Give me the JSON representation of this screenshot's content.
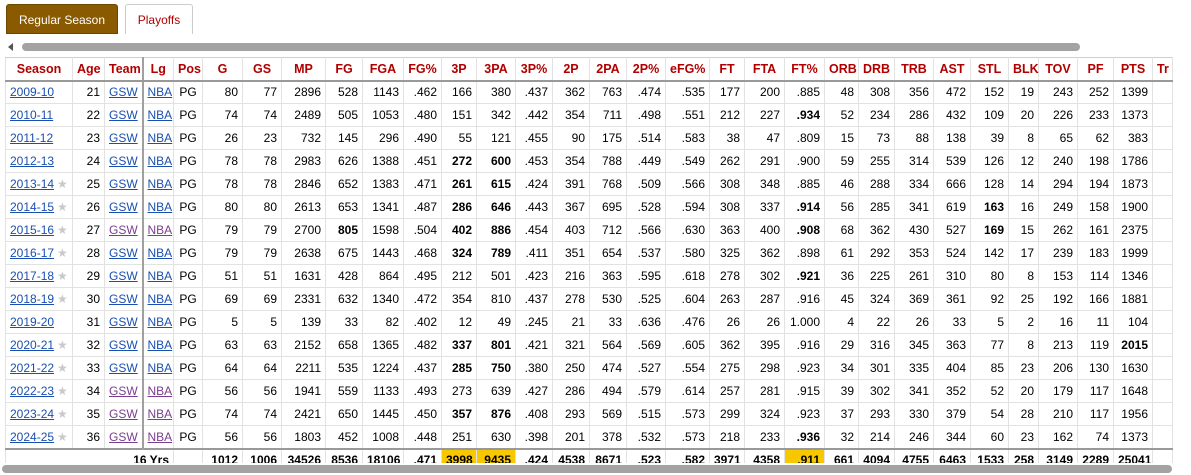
{
  "tabs": [
    {
      "label": "Regular Season",
      "active": true
    },
    {
      "label": "Playoffs",
      "active": false
    }
  ],
  "columns": [
    "Season",
    "Age",
    "Team",
    "Lg",
    "Pos",
    "G",
    "GS",
    "MP",
    "FG",
    "FGA",
    "FG%",
    "3P",
    "3PA",
    "3P%",
    "2P",
    "2PA",
    "2P%",
    "eFG%",
    "FT",
    "FTA",
    "FT%",
    "ORB",
    "DRB",
    "TRB",
    "AST",
    "STL",
    "BLK",
    "TOV",
    "PF",
    "PTS",
    "Tr"
  ],
  "rows": [
    {
      "season": "2009-10",
      "star": false,
      "cells": [
        "21",
        "GSW",
        "NBA",
        "PG",
        "80",
        "77",
        "2896",
        "528",
        "1143",
        ".462",
        "166",
        "380",
        ".437",
        "362",
        "763",
        ".474",
        ".535",
        "177",
        "200",
        ".885",
        "48",
        "308",
        "356",
        "472",
        "152",
        "19",
        "243",
        "252",
        "1399"
      ],
      "bold": []
    },
    {
      "season": "2010-11",
      "star": false,
      "cells": [
        "22",
        "GSW",
        "NBA",
        "PG",
        "74",
        "74",
        "2489",
        "505",
        "1053",
        ".480",
        "151",
        "342",
        ".442",
        "354",
        "711",
        ".498",
        ".551",
        "212",
        "227",
        ".934",
        "52",
        "234",
        "286",
        "432",
        "109",
        "20",
        "226",
        "233",
        "1373"
      ],
      "bold": [
        ".934"
      ]
    },
    {
      "season": "2011-12",
      "star": false,
      "cells": [
        "23",
        "GSW",
        "NBA",
        "PG",
        "26",
        "23",
        "732",
        "145",
        "296",
        ".490",
        "55",
        "121",
        ".455",
        "90",
        "175",
        ".514",
        ".583",
        "38",
        "47",
        ".809",
        "15",
        "73",
        "88",
        "138",
        "39",
        "8",
        "65",
        "62",
        "383"
      ],
      "bold": []
    },
    {
      "season": "2012-13",
      "star": false,
      "cells": [
        "24",
        "GSW",
        "NBA",
        "PG",
        "78",
        "78",
        "2983",
        "626",
        "1388",
        ".451",
        "272",
        "600",
        ".453",
        "354",
        "788",
        ".449",
        ".549",
        "262",
        "291",
        ".900",
        "59",
        "255",
        "314",
        "539",
        "126",
        "12",
        "240",
        "198",
        "1786"
      ],
      "bold": [
        "272",
        "600"
      ]
    },
    {
      "season": "2013-14",
      "star": true,
      "cells": [
        "25",
        "GSW",
        "NBA",
        "PG",
        "78",
        "78",
        "2846",
        "652",
        "1383",
        ".471",
        "261",
        "615",
        ".424",
        "391",
        "768",
        ".509",
        ".566",
        "308",
        "348",
        ".885",
        "46",
        "288",
        "334",
        "666",
        "128",
        "14",
        "294",
        "194",
        "1873"
      ],
      "bold": [
        "261",
        "615"
      ]
    },
    {
      "season": "2014-15",
      "star": true,
      "cells": [
        "26",
        "GSW",
        "NBA",
        "PG",
        "80",
        "80",
        "2613",
        "653",
        "1341",
        ".487",
        "286",
        "646",
        ".443",
        "367",
        "695",
        ".528",
        ".594",
        "308",
        "337",
        ".914",
        "56",
        "285",
        "341",
        "619",
        "163",
        "16",
        "249",
        "158",
        "1900"
      ],
      "bold": [
        "286",
        "646",
        ".914",
        "163"
      ]
    },
    {
      "season": "2015-16",
      "star": true,
      "cells": [
        "27",
        "GSW",
        "NBA",
        "PG",
        "79",
        "79",
        "2700",
        "805",
        "1598",
        ".504",
        "402",
        "886",
        ".454",
        "403",
        "712",
        ".566",
        ".630",
        "363",
        "400",
        ".908",
        "68",
        "362",
        "430",
        "527",
        "169",
        "15",
        "262",
        "161",
        "2375"
      ],
      "bold": [
        "805",
        "402",
        "886",
        ".908",
        "169"
      ]
    },
    {
      "season": "2016-17",
      "star": true,
      "cells": [
        "28",
        "GSW",
        "NBA",
        "PG",
        "79",
        "79",
        "2638",
        "675",
        "1443",
        ".468",
        "324",
        "789",
        ".411",
        "351",
        "654",
        ".537",
        ".580",
        "325",
        "362",
        ".898",
        "61",
        "292",
        "353",
        "524",
        "142",
        "17",
        "239",
        "183",
        "1999"
      ],
      "bold": [
        "324",
        "789"
      ]
    },
    {
      "season": "2017-18",
      "star": true,
      "cells": [
        "29",
        "GSW",
        "NBA",
        "PG",
        "51",
        "51",
        "1631",
        "428",
        "864",
        ".495",
        "212",
        "501",
        ".423",
        "216",
        "363",
        ".595",
        ".618",
        "278",
        "302",
        ".921",
        "36",
        "225",
        "261",
        "310",
        "80",
        "8",
        "153",
        "114",
        "1346"
      ],
      "bold": [
        ".921"
      ]
    },
    {
      "season": "2018-19",
      "star": true,
      "cells": [
        "30",
        "GSW",
        "NBA",
        "PG",
        "69",
        "69",
        "2331",
        "632",
        "1340",
        ".472",
        "354",
        "810",
        ".437",
        "278",
        "530",
        ".525",
        ".604",
        "263",
        "287",
        ".916",
        "45",
        "324",
        "369",
        "361",
        "92",
        "25",
        "192",
        "166",
        "1881"
      ],
      "bold": []
    },
    {
      "season": "2019-20",
      "star": false,
      "cells": [
        "31",
        "GSW",
        "NBA",
        "PG",
        "5",
        "5",
        "139",
        "33",
        "82",
        ".402",
        "12",
        "49",
        ".245",
        "21",
        "33",
        ".636",
        ".476",
        "26",
        "26",
        "1.000",
        "4",
        "22",
        "26",
        "33",
        "5",
        "2",
        "16",
        "11",
        "104"
      ],
      "bold": []
    },
    {
      "season": "2020-21",
      "star": true,
      "cells": [
        "32",
        "GSW",
        "NBA",
        "PG",
        "63",
        "63",
        "2152",
        "658",
        "1365",
        ".482",
        "337",
        "801",
        ".421",
        "321",
        "564",
        ".569",
        ".605",
        "362",
        "395",
        ".916",
        "29",
        "316",
        "345",
        "363",
        "77",
        "8",
        "213",
        "119",
        "2015"
      ],
      "bold": [
        "337",
        "801",
        "2015"
      ]
    },
    {
      "season": "2021-22",
      "star": true,
      "cells": [
        "33",
        "GSW",
        "NBA",
        "PG",
        "64",
        "64",
        "2211",
        "535",
        "1224",
        ".437",
        "285",
        "750",
        ".380",
        "250",
        "474",
        ".527",
        ".554",
        "275",
        "298",
        ".923",
        "34",
        "301",
        "335",
        "404",
        "85",
        "23",
        "206",
        "130",
        "1630"
      ],
      "bold": [
        "285",
        "750"
      ]
    },
    {
      "season": "2022-23",
      "star": true,
      "cells": [
        "34",
        "GSW",
        "NBA",
        "PG",
        "56",
        "56",
        "1941",
        "559",
        "1133",
        ".493",
        "273",
        "639",
        ".427",
        "286",
        "494",
        ".579",
        ".614",
        "257",
        "281",
        ".915",
        "39",
        "302",
        "341",
        "352",
        "52",
        "20",
        "179",
        "117",
        "1648"
      ],
      "bold": []
    },
    {
      "season": "2023-24",
      "star": true,
      "cells": [
        "35",
        "GSW",
        "NBA",
        "PG",
        "74",
        "74",
        "2421",
        "650",
        "1445",
        ".450",
        "357",
        "876",
        ".408",
        "293",
        "569",
        ".515",
        ".573",
        "299",
        "324",
        ".923",
        "37",
        "293",
        "330",
        "379",
        "54",
        "28",
        "210",
        "117",
        "1956"
      ],
      "bold": [
        "357",
        "876"
      ]
    },
    {
      "season": "2024-25",
      "star": true,
      "cells": [
        "36",
        "GSW",
        "NBA",
        "PG",
        "56",
        "56",
        "1803",
        "452",
        "1008",
        ".448",
        "251",
        "630",
        ".398",
        "201",
        "378",
        ".532",
        ".573",
        "218",
        "233",
        ".936",
        "32",
        "214",
        "246",
        "344",
        "60",
        "23",
        "162",
        "74",
        "1373"
      ],
      "bold": [
        ".936"
      ]
    }
  ],
  "totals": {
    "label": "16 Yrs",
    "cells": [
      "1012",
      "1006",
      "34526",
      "8536",
      "18106",
      ".471",
      "3998",
      "9435",
      ".424",
      "4538",
      "8671",
      ".523",
      ".582",
      "3971",
      "4358",
      ".911",
      "661",
      "4094",
      "4755",
      "6463",
      "1533",
      "258",
      "3149",
      "2289",
      "25041"
    ],
    "highlight_indices": [
      6,
      7,
      15
    ],
    "highlight_color": "#f7c800"
  },
  "colors": {
    "active_tab": "#8a5a00",
    "header_text": "#b00000",
    "link": "#1a4fb0",
    "visited_link": "#7b3d8f"
  }
}
